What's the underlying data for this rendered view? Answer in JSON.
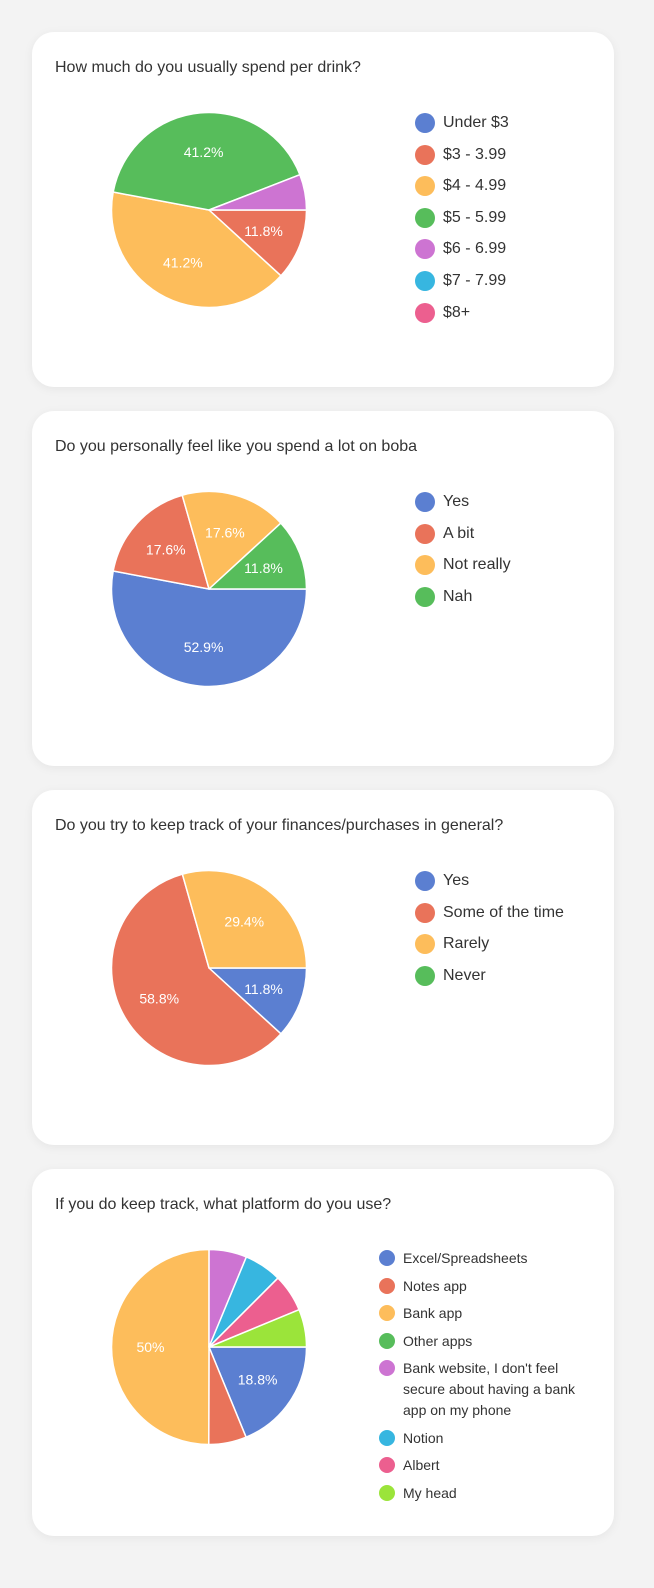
{
  "colors": {
    "blue": "#5b7fd1",
    "red": "#e9735a",
    "yellow": "#fdbd5b",
    "green": "#57bd5b",
    "purple": "#cd74d2",
    "cyan": "#37b6e0",
    "pink": "#ec5f8f",
    "lime": "#9be43a"
  },
  "chart_data": [
    {
      "type": "pie",
      "title": "How much do you usually spend per drink?",
      "labels": [
        "Under $3",
        "$3 - 3.99",
        "$4 - 4.99",
        "$5 - 5.99",
        "$6 - 6.99",
        "$7 - 7.99",
        "$8+"
      ],
      "values": [
        0,
        11.8,
        41.2,
        41.2,
        5.9,
        0,
        0
      ],
      "value_labels": [
        "",
        "11.8%",
        "41.2%",
        "41.2%",
        "",
        "",
        ""
      ],
      "colors": [
        "#5b7fd1",
        "#e9735a",
        "#fdbd5b",
        "#57bd5b",
        "#cd74d2",
        "#37b6e0",
        "#ec5f8f"
      ],
      "legend": "right"
    },
    {
      "type": "pie",
      "title": "Do you personally feel like you spend a lot on boba",
      "labels": [
        "Yes",
        "A bit",
        "Not really",
        "Nah"
      ],
      "values": [
        52.9,
        17.6,
        17.6,
        11.8
      ],
      "value_labels": [
        "52.9%",
        "17.6%",
        "17.6%",
        "11.8%"
      ],
      "colors": [
        "#5b7fd1",
        "#e9735a",
        "#fdbd5b",
        "#57bd5b"
      ],
      "legend": "right"
    },
    {
      "type": "pie",
      "title": "Do you try to keep track of your finances/purchases in general?",
      "labels": [
        "Yes",
        "Some of the time",
        "Rarely",
        "Never"
      ],
      "values": [
        11.8,
        58.8,
        29.4,
        0
      ],
      "value_labels": [
        "11.8%",
        "58.8%",
        "29.4%",
        ""
      ],
      "colors": [
        "#5b7fd1",
        "#e9735a",
        "#fdbd5b",
        "#57bd5b"
      ],
      "legend": "right"
    },
    {
      "type": "pie",
      "title": "If you do keep track, what platform do you use?",
      "labels": [
        "Excel/Spreadsheets",
        "Notes app",
        "Bank app",
        "Other apps",
        "Bank website, I don't feel secure about having a bank app on my phone",
        "Notion",
        "Albert",
        "My head"
      ],
      "values": [
        18.8,
        6.25,
        50,
        0,
        6.25,
        6.25,
        6.25,
        6.25
      ],
      "value_labels": [
        "18.8%",
        "",
        "50%",
        "",
        "",
        "",
        "",
        ""
      ],
      "colors": [
        "#5b7fd1",
        "#e9735a",
        "#fdbd5b",
        "#57bd5b",
        "#cd74d2",
        "#37b6e0",
        "#ec5f8f",
        "#9be43a"
      ],
      "legend": "right"
    }
  ]
}
